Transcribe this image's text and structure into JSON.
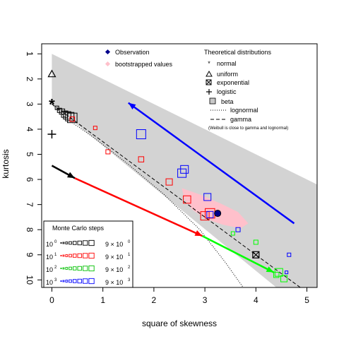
{
  "chart_data": {
    "type": "scatter",
    "xlabel": "square of skewness",
    "ylabel": "kurtosis",
    "xlim": [
      -0.2,
      5.2
    ],
    "ylim": [
      10.3,
      0.6
    ],
    "x_ticks": [
      "0",
      "1",
      "2",
      "3",
      "4",
      "5"
    ],
    "x_tick_values": [
      0,
      1,
      2,
      3,
      4,
      5
    ],
    "y_ticks": [
      "1",
      "2",
      "3",
      "4",
      "5",
      "6",
      "7",
      "8",
      "9",
      "10"
    ],
    "y_tick_values": [
      1,
      2,
      3,
      4,
      5,
      6,
      7,
      8,
      9,
      10
    ],
    "beta_region": [
      [
        0,
        1
      ],
      [
        5.2,
        6.2
      ],
      [
        5.2,
        10.3
      ],
      [
        4.4,
        10.3
      ],
      [
        0,
        3
      ]
    ],
    "lognormal_curve": [
      [
        0,
        3
      ],
      [
        0.3,
        3.6
      ],
      [
        0.8,
        4.3
      ],
      [
        1.5,
        5.4
      ],
      [
        2.2,
        6.6
      ],
      [
        2.9,
        8.0
      ],
      [
        3.4,
        9.3
      ],
      [
        3.75,
        10.3
      ]
    ],
    "gamma_curve": [
      [
        0,
        3
      ],
      [
        0.5,
        3.75
      ],
      [
        1.0,
        4.5
      ],
      [
        1.5,
        5.25
      ],
      [
        2.0,
        6.0
      ],
      [
        2.5,
        6.75
      ],
      [
        3.0,
        7.5
      ],
      [
        3.5,
        8.25
      ],
      [
        4.0,
        9.0
      ],
      [
        4.5,
        9.75
      ],
      [
        4.87,
        10.3
      ]
    ],
    "observation": {
      "x": 3.25,
      "y": 7.35
    },
    "bootstrap_region": [
      [
        2.55,
        6.35
      ],
      [
        2.9,
        6.6
      ],
      [
        3.3,
        6.95
      ],
      [
        3.65,
        7.3
      ],
      [
        3.85,
        7.75
      ],
      [
        3.7,
        7.95
      ],
      [
        3.35,
        7.8
      ],
      [
        3.0,
        7.55
      ],
      [
        2.75,
        7.2
      ],
      [
        2.6,
        6.8
      ]
    ],
    "theoretical_points": [
      {
        "name": "normal",
        "x": 0,
        "y": 3
      },
      {
        "name": "uniform",
        "x": 0,
        "y": 1.8
      },
      {
        "name": "exponential",
        "x": 4,
        "y": 9
      },
      {
        "name": "logistic",
        "x": 0,
        "y": 4.2
      }
    ],
    "arrows": [
      {
        "color": "#000000",
        "from": [
          0,
          5.45
        ],
        "to": [
          0.45,
          5.95
        ]
      },
      {
        "color": "#ff0000",
        "from": [
          0.45,
          5.95
        ],
        "to": [
          2.95,
          8.25
        ]
      },
      {
        "color": "#00ff00",
        "from": [
          2.95,
          8.25
        ],
        "to": [
          4.35,
          9.7
        ]
      },
      {
        "color": "#0000ff",
        "from": [
          4.75,
          7.75
        ],
        "to": [
          1.5,
          2.95
        ]
      }
    ],
    "monte_carlo_points": [
      {
        "step": 1,
        "color": "#000000",
        "pts": [
          [
            0.1,
            3.15
          ],
          [
            0.15,
            3.25
          ],
          [
            0.2,
            3.3
          ],
          [
            0.25,
            3.4
          ],
          [
            0.3,
            3.45
          ],
          [
            0.35,
            3.5
          ],
          [
            0.4,
            3.55
          ]
        ],
        "sizes": [
          1,
          1.2,
          1.5,
          1.8,
          2.1,
          2.4,
          2.7
        ]
      },
      {
        "step": 2,
        "color": "#ff0000",
        "pts": [
          [
            0.85,
            3.95
          ],
          [
            1.1,
            4.9
          ],
          [
            1.75,
            5.2
          ],
          [
            2.3,
            6.1
          ],
          [
            2.65,
            6.8
          ],
          [
            3.0,
            7.45
          ],
          [
            3.1,
            7.35
          ],
          [
            0.4,
            3.6
          ]
        ],
        "sizes": [
          1,
          1.2,
          1.5,
          1.8,
          2.1,
          2.4,
          2.7,
          1.3
        ]
      },
      {
        "step": 3,
        "color": "#00ff00",
        "pts": [
          [
            3.55,
            8.15
          ],
          [
            4.0,
            8.5
          ],
          [
            4.4,
            9.8
          ],
          [
            4.55,
            9.95
          ],
          [
            4.45,
            9.7
          ]
        ],
        "sizes": [
          1,
          1.2,
          1.5,
          1.8,
          2.2
        ]
      },
      {
        "step": 4,
        "color": "#0000ff",
        "pts": [
          [
            1.75,
            4.2
          ],
          [
            2.55,
            5.75
          ],
          [
            2.6,
            5.6
          ],
          [
            3.05,
            6.7
          ],
          [
            3.1,
            7.4
          ],
          [
            3.65,
            8.0
          ],
          [
            4.65,
            9.0
          ],
          [
            4.6,
            9.7
          ]
        ],
        "sizes": [
          2.6,
          2.4,
          2.2,
          2.0,
          1.8,
          1.2,
          1.0,
          0.8
        ]
      }
    ],
    "legend_observation": {
      "observation": "Observation",
      "bootstrapped": "bootstrapped values"
    },
    "legend_theoretical": {
      "title": "Theoretical distributions",
      "normal": "normal",
      "uniform": "uniform",
      "exponential": "exponential",
      "logistic": "logistic",
      "beta": "beta",
      "lognormal": "lognormal",
      "gamma": "gamma",
      "note": "(Weibull is close to gamma and lognormal)"
    },
    "legend_mc": {
      "title": "Monte Carlo steps",
      "rows": [
        {
          "left_base": "10",
          "left_exp": "0",
          "right_base": "9 × 10",
          "right_exp": "0",
          "color": "#000000"
        },
        {
          "left_base": "10",
          "left_exp": "1",
          "right_base": "9 × 10",
          "right_exp": "1",
          "color": "#ff0000"
        },
        {
          "left_base": "10",
          "left_exp": "2",
          "right_base": "9 × 10",
          "right_exp": "2",
          "color": "#00c000"
        },
        {
          "left_base": "10",
          "left_exp": "3",
          "right_base": "9 × 10",
          "right_exp": "3",
          "color": "#0000ff"
        }
      ]
    },
    "colors": {
      "beta_fill": "#d3d3d3",
      "bootstrap_fill": "#ffc0cb",
      "observation": "#00008b"
    }
  }
}
